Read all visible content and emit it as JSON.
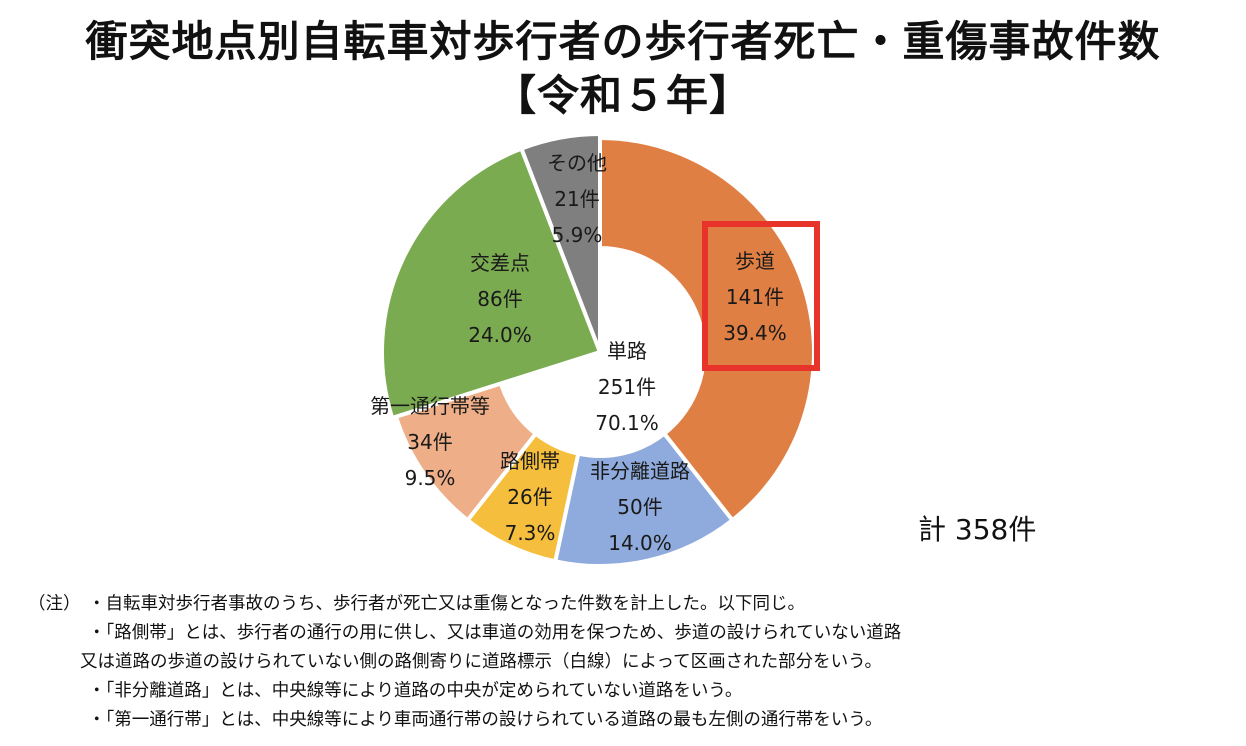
{
  "title_line1": "衝突地点別自転車対歩行者の歩行者死亡・重傷事故件数",
  "title_line2": "【令和５年】",
  "total_label": "計 358件",
  "chart_data": {
    "type": "pie",
    "subtype": "donut",
    "title": "衝突地点別自転車対歩行者の歩行者死亡・重傷事故件数【令和５年】",
    "total": 358,
    "center": {
      "name": "単路",
      "count": "251件",
      "percent": "70.1%",
      "value": 251
    },
    "slices": [
      {
        "name": "歩道",
        "count": "141件",
        "percent": "39.4%",
        "value": 141,
        "color": "#E07F44",
        "highlighted": true
      },
      {
        "name": "非分離道路",
        "count": "50件",
        "percent": "14.0%",
        "value": 50,
        "color": "#8FAADC"
      },
      {
        "name": "路側帯",
        "count": "26件",
        "percent": "7.3%",
        "value": 26,
        "color": "#F5BE3C"
      },
      {
        "name": "第一通行帯等",
        "count": "34件",
        "percent": "9.5%",
        "value": 34,
        "color": "#EDAE88"
      },
      {
        "name": "交差点",
        "count": "86件",
        "percent": "24.0%",
        "value": 86,
        "color": "#7AAB50"
      },
      {
        "name": "その他",
        "count": "21件",
        "percent": "5.9%",
        "value": 21,
        "color": "#7F7F7F"
      }
    ],
    "highlight_color": "#E8332A"
  },
  "notes": {
    "prefix": "（注）",
    "items": [
      "・自転車対歩行者事故のうち、歩行者が死亡又は重傷となった件数を計上した。以下同じ。",
      "・「路側帯」とは、歩行者の通行の用に供し、又は車道の効用を保つため、歩道の設けられていない道路",
      "又は道路の歩道の設けられていない側の路側寄りに道路標示（白線）によって区画された部分をいう。",
      "・「非分離道路」とは、中央線等により道路の中央が定められていない道路をいう。",
      "・「第一通行帯」とは、中央線等により車両通行帯の設けられている道路の最も左側の通行帯をいう。"
    ]
  }
}
